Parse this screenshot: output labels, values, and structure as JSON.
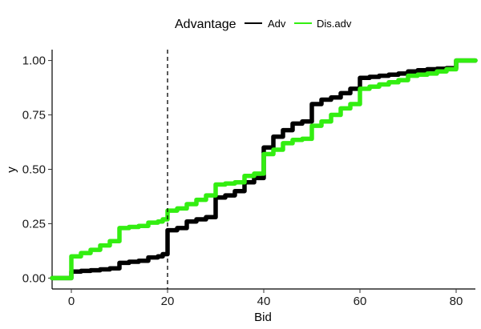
{
  "chart_data": {
    "type": "line",
    "step": true,
    "xlabel": "Bid",
    "ylabel": "y",
    "xlim": [
      -4,
      84
    ],
    "ylim": [
      -0.05,
      1.05
    ],
    "x_ticks": [
      0,
      20,
      40,
      60,
      80
    ],
    "x_tick_labels": [
      "0",
      "20",
      "40",
      "60",
      "80"
    ],
    "y_ticks": [
      0,
      0.25,
      0.5,
      0.75,
      1.0
    ],
    "y_tick_labels": [
      "0.00",
      "0.25",
      "0.50",
      "0.75",
      "1.00"
    ],
    "grid": false,
    "legend": {
      "title": "Advantage",
      "position": "top-center",
      "items": [
        {
          "label": "Adv",
          "color": "#000000"
        },
        {
          "label": "Dis.adv",
          "color": "#33ee11"
        }
      ]
    },
    "reference_line": {
      "x": 20,
      "style": "dashed",
      "color": "#000000"
    },
    "series": [
      {
        "name": "Adv",
        "color": "#000000",
        "x": [
          -4,
          0,
          0,
          2,
          4,
          6,
          8,
          10,
          12,
          14,
          16,
          18,
          19,
          20,
          20,
          22,
          24,
          26,
          28,
          30,
          30,
          32,
          34,
          36,
          38,
          40,
          40,
          42,
          44,
          46,
          48,
          50,
          50,
          52,
          54,
          56,
          58,
          60,
          60,
          62,
          64,
          66,
          68,
          70,
          72,
          74,
          76,
          78,
          80,
          84
        ],
        "y": [
          0,
          0,
          0.03,
          0.033,
          0.036,
          0.04,
          0.045,
          0.07,
          0.075,
          0.08,
          0.095,
          0.1,
          0.11,
          0.2,
          0.22,
          0.23,
          0.26,
          0.27,
          0.28,
          0.37,
          0.37,
          0.38,
          0.4,
          0.44,
          0.46,
          0.6,
          0.6,
          0.65,
          0.68,
          0.71,
          0.72,
          0.8,
          0.8,
          0.82,
          0.83,
          0.85,
          0.87,
          0.92,
          0.92,
          0.925,
          0.93,
          0.935,
          0.94,
          0.95,
          0.955,
          0.96,
          0.962,
          0.965,
          1.0,
          1.0
        ]
      },
      {
        "name": "Dis.adv",
        "color": "#33ee11",
        "x": [
          -4,
          0,
          0,
          2,
          4,
          6,
          8,
          10,
          12,
          14,
          16,
          18,
          19,
          20,
          20,
          22,
          24,
          26,
          28,
          30,
          30,
          32,
          34,
          36,
          38,
          40,
          40,
          42,
          44,
          46,
          48,
          50,
          50,
          52,
          54,
          56,
          58,
          60,
          60,
          62,
          64,
          66,
          68,
          70,
          72,
          74,
          76,
          78,
          80,
          84
        ],
        "y": [
          0,
          0,
          0.1,
          0.115,
          0.13,
          0.15,
          0.17,
          0.23,
          0.235,
          0.24,
          0.255,
          0.26,
          0.27,
          0.31,
          0.31,
          0.32,
          0.34,
          0.36,
          0.38,
          0.42,
          0.43,
          0.435,
          0.44,
          0.47,
          0.48,
          0.56,
          0.57,
          0.59,
          0.62,
          0.635,
          0.64,
          0.7,
          0.7,
          0.72,
          0.75,
          0.78,
          0.8,
          0.86,
          0.87,
          0.88,
          0.89,
          0.9,
          0.91,
          0.93,
          0.935,
          0.94,
          0.95,
          0.96,
          1.0,
          1.0
        ]
      }
    ]
  }
}
